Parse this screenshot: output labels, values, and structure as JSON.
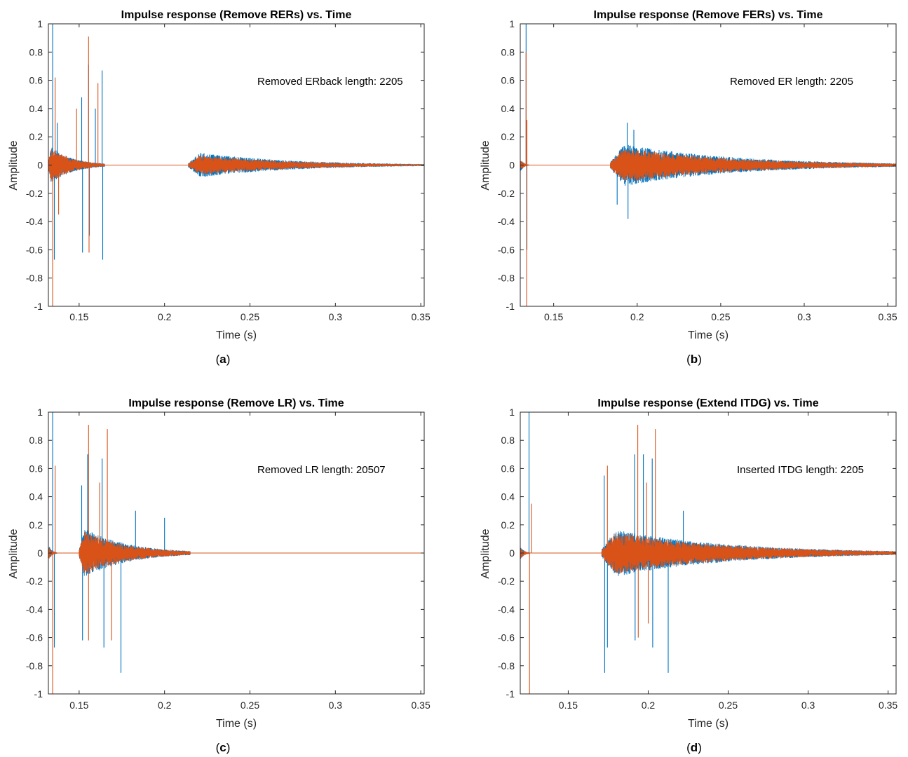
{
  "figure": {
    "panels": [
      {
        "caption_letter": "a"
      },
      {
        "caption_letter": "b"
      },
      {
        "caption_letter": "c"
      },
      {
        "caption_letter": "d"
      }
    ]
  },
  "chart_data": [
    {
      "type": "line",
      "title": "Impulse response (Remove RERs) vs. Time",
      "xlabel": "Time (s)",
      "ylabel": "Amplitude",
      "xlim": [
        0.132,
        0.352
      ],
      "ylim": [
        -1,
        1
      ],
      "xticks": [
        0.15,
        0.2,
        0.25,
        0.3,
        0.35
      ],
      "xticklabels": [
        "0.15",
        "0.2",
        "0.25",
        "0.3",
        "0.35"
      ],
      "yticks": [
        1,
        0.8,
        0.6,
        0.4,
        0.2,
        0,
        -0.2,
        -0.4,
        -0.6,
        -0.8,
        -1
      ],
      "yticklabels": [
        "1",
        "0.8",
        "0.6",
        "0.4",
        "0.2",
        "0",
        "-0.2",
        "-0.4",
        "-0.6",
        "-0.8",
        "-1"
      ],
      "annotation": "Removed ERback length: 2205",
      "grid": false,
      "colors": {
        "series1": "#0072BD",
        "series2": "#D95319"
      },
      "series": [
        {
          "color": "#0072BD",
          "segments": [
            {
              "start": 0.132,
              "end": 0.165,
              "peak": 0.15
            },
            {
              "start": 0.214,
              "end": 0.352,
              "peak": 0.1
            }
          ],
          "spikes": [
            [
              0.1345,
              1.0
            ],
            [
              0.1355,
              -0.67
            ],
            [
              0.1515,
              0.48
            ],
            [
              0.152,
              -0.62
            ],
            [
              0.1555,
              0.71
            ],
            [
              0.156,
              -0.5
            ],
            [
              0.1635,
              0.67
            ],
            [
              0.1638,
              -0.67
            ],
            [
              0.1372,
              0.3
            ],
            [
              0.1595,
              0.4
            ]
          ]
        },
        {
          "color": "#D95319",
          "segments": [
            {
              "start": 0.132,
              "end": 0.165,
              "peak": 0.14
            },
            {
              "start": 0.214,
              "end": 0.352,
              "peak": 0.08
            }
          ],
          "spikes": [
            [
              0.1345,
              -1.0
            ],
            [
              0.136,
              0.62
            ],
            [
              0.1555,
              0.91
            ],
            [
              0.1558,
              -0.62
            ],
            [
              0.161,
              0.58
            ],
            [
              0.1485,
              0.4
            ],
            [
              0.138,
              -0.35
            ]
          ]
        }
      ]
    },
    {
      "type": "line",
      "title": "Impulse response (Remove FERs) vs. Time",
      "xlabel": "Time (s)",
      "ylabel": "Amplitude",
      "xlim": [
        0.13,
        0.355
      ],
      "ylim": [
        -1,
        1
      ],
      "xticks": [
        0.15,
        0.2,
        0.25,
        0.3,
        0.35
      ],
      "xticklabels": [
        "0.15",
        "0.2",
        "0.25",
        "0.3",
        "0.35"
      ],
      "yticks": [
        1,
        0.8,
        0.6,
        0.4,
        0.2,
        0,
        -0.2,
        -0.4,
        -0.6,
        -0.8,
        -1
      ],
      "yticklabels": [
        "1",
        "0.8",
        "0.6",
        "0.4",
        "0.2",
        "0",
        "-0.2",
        "-0.4",
        "-0.6",
        "-0.8",
        "-1"
      ],
      "annotation": "Removed ER length: 2205",
      "grid": false,
      "colors": {
        "series1": "#0072BD",
        "series2": "#D95319"
      },
      "series": [
        {
          "color": "#0072BD",
          "segments": [
            {
              "start": 0.13,
              "end": 0.135,
              "peak": 0.05
            },
            {
              "start": 0.184,
              "end": 0.355,
              "peak": 0.17
            }
          ],
          "spikes": [
            [
              0.1335,
              1.0
            ],
            [
              0.134,
              -0.6
            ],
            [
              0.194,
              0.3
            ],
            [
              0.1945,
              -0.38
            ],
            [
              0.198,
              0.25
            ],
            [
              0.188,
              -0.28
            ]
          ]
        },
        {
          "color": "#D95319",
          "segments": [
            {
              "start": 0.13,
              "end": 0.135,
              "peak": 0.05
            },
            {
              "start": 0.184,
              "end": 0.355,
              "peak": 0.14
            }
          ],
          "spikes": [
            [
              0.1335,
              0.8
            ],
            [
              0.1338,
              -1.0
            ],
            [
              0.134,
              0.32
            ]
          ]
        }
      ]
    },
    {
      "type": "line",
      "title": "Impulse response (Remove LR) vs. Time",
      "xlabel": "Time (s)",
      "ylabel": "Amplitude",
      "xlim": [
        0.132,
        0.352
      ],
      "ylim": [
        -1,
        1
      ],
      "xticks": [
        0.15,
        0.2,
        0.25,
        0.3,
        0.35
      ],
      "xticklabels": [
        "0.15",
        "0.2",
        "0.25",
        "0.3",
        "0.35"
      ],
      "yticks": [
        1,
        0.8,
        0.6,
        0.4,
        0.2,
        0,
        -0.2,
        -0.4,
        -0.6,
        -0.8,
        -1
      ],
      "yticklabels": [
        "1",
        "0.8",
        "0.6",
        "0.4",
        "0.2",
        "0",
        "-0.2",
        "-0.4",
        "-0.6",
        "-0.8",
        "-1"
      ],
      "annotation": "Removed LR length: 20507",
      "grid": false,
      "colors": {
        "series1": "#0072BD",
        "series2": "#D95319"
      },
      "series": [
        {
          "color": "#0072BD",
          "segments": [
            {
              "start": 0.132,
              "end": 0.137,
              "peak": 0.06
            },
            {
              "start": 0.15,
              "end": 0.215,
              "peak": 0.2
            }
          ],
          "spikes": [
            [
              0.1345,
              1.0
            ],
            [
              0.1355,
              -0.67
            ],
            [
              0.1515,
              0.48
            ],
            [
              0.155,
              0.7
            ],
            [
              0.1635,
              0.67
            ],
            [
              0.1645,
              -0.67
            ],
            [
              0.1745,
              -0.85
            ],
            [
              0.152,
              -0.62
            ],
            [
              0.183,
              0.3
            ],
            [
              0.2,
              0.25
            ]
          ]
        },
        {
          "color": "#D95319",
          "segments": [
            {
              "start": 0.132,
              "end": 0.137,
              "peak": 0.05
            },
            {
              "start": 0.15,
              "end": 0.215,
              "peak": 0.18
            }
          ],
          "spikes": [
            [
              0.1345,
              -1.0
            ],
            [
              0.136,
              0.62
            ],
            [
              0.1555,
              0.91
            ],
            [
              0.1665,
              0.88
            ],
            [
              0.1555,
              -0.62
            ],
            [
              0.162,
              0.5
            ],
            [
              0.169,
              -0.62
            ]
          ]
        }
      ]
    },
    {
      "type": "line",
      "title": "Impulse response (Extend ITDG) vs. Time",
      "xlabel": "Time (s)",
      "ylabel": "Amplitude",
      "xlim": [
        0.12,
        0.355
      ],
      "ylim": [
        -1,
        1
      ],
      "xticks": [
        0.15,
        0.2,
        0.25,
        0.3,
        0.35
      ],
      "xticklabels": [
        "0.15",
        "0.2",
        "0.25",
        "0.3",
        "0.35"
      ],
      "yticks": [
        1,
        0.8,
        0.6,
        0.4,
        0.2,
        0,
        -0.2,
        -0.4,
        -0.6,
        -0.8,
        -1
      ],
      "yticklabels": [
        "1",
        "0.8",
        "0.6",
        "0.4",
        "0.2",
        "0",
        "-0.2",
        "-0.4",
        "-0.6",
        "-0.8",
        "-1"
      ],
      "annotation": "Inserted ITDG length: 2205",
      "grid": false,
      "colors": {
        "series1": "#0072BD",
        "series2": "#D95319"
      },
      "series": [
        {
          "color": "#0072BD",
          "segments": [
            {
              "start": 0.12,
              "end": 0.126,
              "peak": 0.05
            },
            {
              "start": 0.171,
              "end": 0.355,
              "peak": 0.19
            }
          ],
          "spikes": [
            [
              0.1255,
              1.0
            ],
            [
              0.1725,
              0.55
            ],
            [
              0.1728,
              -0.85
            ],
            [
              0.1745,
              -0.67
            ],
            [
              0.1915,
              0.7
            ],
            [
              0.1918,
              -0.62
            ],
            [
              0.197,
              0.7
            ],
            [
              0.2025,
              0.67
            ],
            [
              0.2028,
              -0.67
            ],
            [
              0.2125,
              -0.85
            ],
            [
              0.222,
              0.3
            ]
          ]
        },
        {
          "color": "#D95319",
          "segments": [
            {
              "start": 0.12,
              "end": 0.126,
              "peak": 0.05
            },
            {
              "start": 0.171,
              "end": 0.355,
              "peak": 0.17
            }
          ],
          "spikes": [
            [
              0.1258,
              -1.0
            ],
            [
              0.127,
              0.35
            ],
            [
              0.1745,
              0.62
            ],
            [
              0.1935,
              0.91
            ],
            [
              0.1938,
              -0.6
            ],
            [
              0.2045,
              0.88
            ],
            [
              0.199,
              0.5
            ],
            [
              0.2,
              -0.5
            ]
          ]
        }
      ]
    }
  ]
}
